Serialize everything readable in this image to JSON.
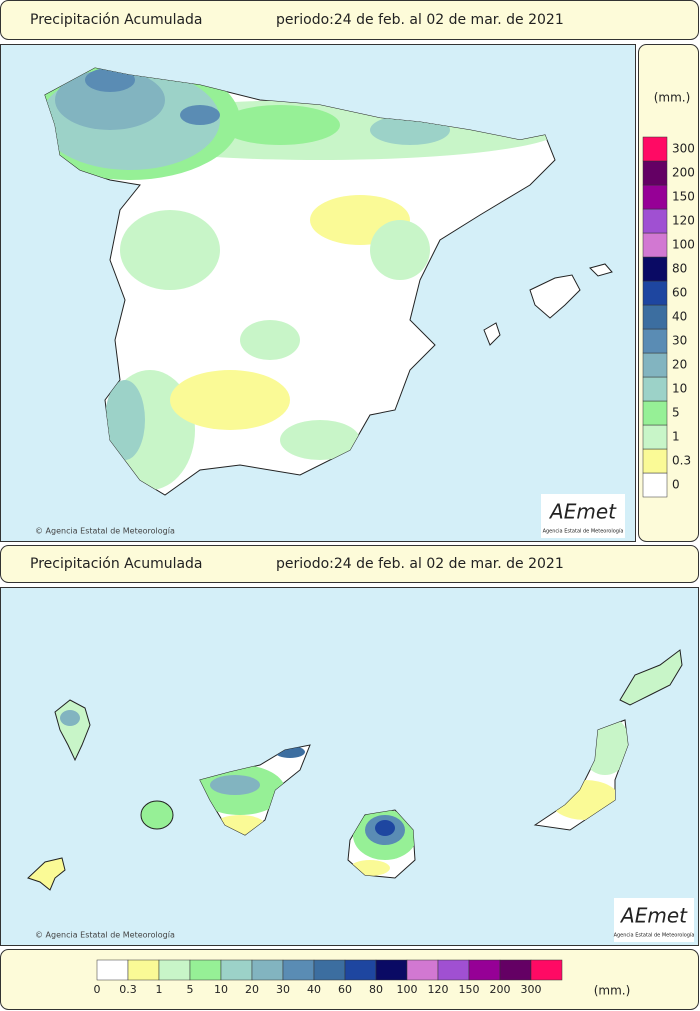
{
  "header_peninsula": {
    "title": "Precipitación Acumulada",
    "period": "periodo:24 de feb. al 02 de mar. de 2021"
  },
  "header_canarias": {
    "title": "Precipitación Acumulada",
    "period": "periodo:24 de feb. al 02 de mar. de 2021"
  },
  "copyright": "© Agencia Estatal de Meteorología",
  "logo": {
    "name": "AEmet",
    "subtitle": "Agencia Estatal de Meteorología"
  },
  "legend": {
    "unit": "(mm.)",
    "levels": [
      0,
      0.3,
      1,
      5,
      10,
      20,
      30,
      40,
      60,
      80,
      100,
      120,
      150,
      200,
      300
    ],
    "colors": [
      "#ffffff",
      "#fafa96",
      "#c8f5c8",
      "#96f096",
      "#9cd2c8",
      "#82b4c0",
      "#5a8cb4",
      "#3c6ea0",
      "#1e46a0",
      "#0a0a64",
      "#d278d2",
      "#a050d2",
      "#960096",
      "#640064",
      "#ff0a64"
    ]
  }
}
